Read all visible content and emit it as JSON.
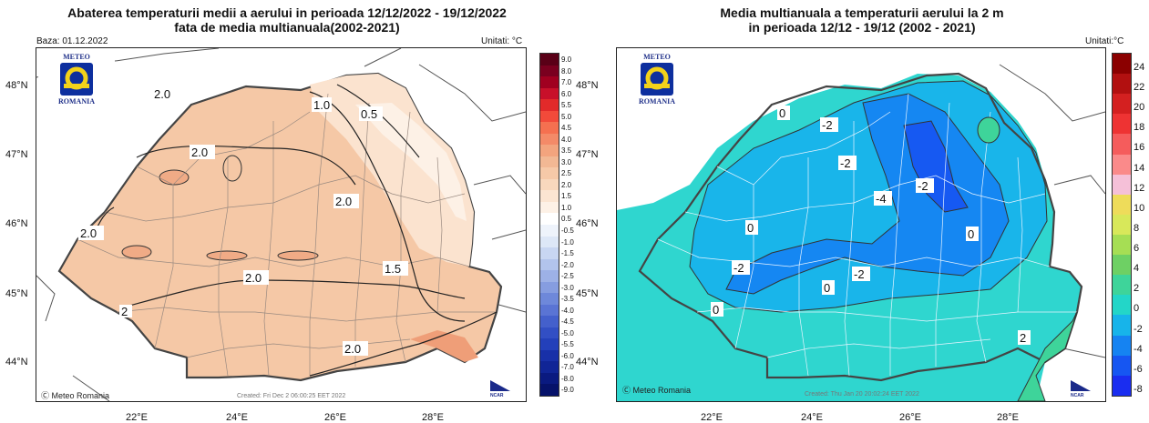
{
  "left": {
    "title1": "Abaterea temperaturii medii a aerului in perioada 12/12/2022 - 19/12/2022",
    "title2": "fata de media multianuala(2002-2021)",
    "base": "Baza: 01.12.2022",
    "units": "Unitati: °C",
    "credit": "Meteo Romania",
    "created": "Created: Fri Dec  2 06:00:25 EET 2022",
    "logo_top": "METEO",
    "logo_bottom": "ROMANIA",
    "ncar": "NCAR",
    "contours": [
      "2.0",
      "2.0",
      "2.0",
      "1.0",
      "0.5",
      "2.0",
      "1.5",
      "2.0",
      "2.0",
      "2"
    ],
    "colorbar": {
      "labels": [
        "9.0",
        "8.0",
        "7.0",
        "6.0",
        "5.5",
        "5.0",
        "4.5",
        "4.0",
        "3.5",
        "3.0",
        "2.5",
        "2.0",
        "1.5",
        "1.0",
        "0.5",
        "-0.5",
        "-1.0",
        "-1.5",
        "-2.0",
        "-2.5",
        "-3.0",
        "-3.5",
        "-4.0",
        "-4.5",
        "-5.0",
        "-5.5",
        "-6.0",
        "-7.0",
        "-8.0",
        "-9.0"
      ],
      "colors": [
        "#5a0017",
        "#7a001f",
        "#a00020",
        "#c8102a",
        "#e22a2a",
        "#f24a3a",
        "#f57050",
        "#f48a68",
        "#f3a47e",
        "#f2b894",
        "#f6c9a8",
        "#f8d8bd",
        "#fbe5d2",
        "#fdf1e6",
        "#ffffff",
        "#eef3fb",
        "#dde7f7",
        "#c8d6f2",
        "#b2c4ec",
        "#9db1e6",
        "#869de0",
        "#6e88da",
        "#5a74d4",
        "#4460cc",
        "#324fc4",
        "#2340ba",
        "#1830a8",
        "#102596",
        "#0a1a80",
        "#06126a"
      ]
    }
  },
  "right": {
    "title1": "Media multianuala a temperaturii aerului la 2 m",
    "title2": "in perioada 12/12 - 19/12 (2002 - 2021)",
    "units": "Unitati:°C",
    "credit": "Meteo Romania",
    "created": "Created: Thu Jan 20 20:02:24 EET 2022",
    "logo_top": "METEO",
    "logo_bottom": "ROMANIA",
    "ncar": "NCAR",
    "contours": [
      "0",
      "-2",
      "-2",
      "-4",
      "-2",
      "0",
      "0",
      "-2",
      "-2",
      "0",
      "0",
      "2"
    ],
    "colorbar": {
      "labels": [
        "24",
        "22",
        "20",
        "18",
        "16",
        "14",
        "12",
        "10",
        "8",
        "6",
        "4",
        "2",
        "0",
        "-2",
        "-4",
        "-6",
        "-8"
      ],
      "colors": [
        "#8b0000",
        "#b21010",
        "#d42020",
        "#ee3333",
        "#f55c5c",
        "#fa8a8a",
        "#f5c0d8",
        "#eedc5a",
        "#d8e85a",
        "#a6de54",
        "#6ed064",
        "#3ed49a",
        "#23d6c8",
        "#17b4ea",
        "#1583f2",
        "#1656f2",
        "#1a2df0"
      ]
    }
  },
  "lat_labels": [
    "48°N",
    "47°N",
    "46°N",
    "45°N",
    "44°N"
  ],
  "lon_labels": [
    "22°E",
    "24°E",
    "26°E",
    "28°E"
  ]
}
